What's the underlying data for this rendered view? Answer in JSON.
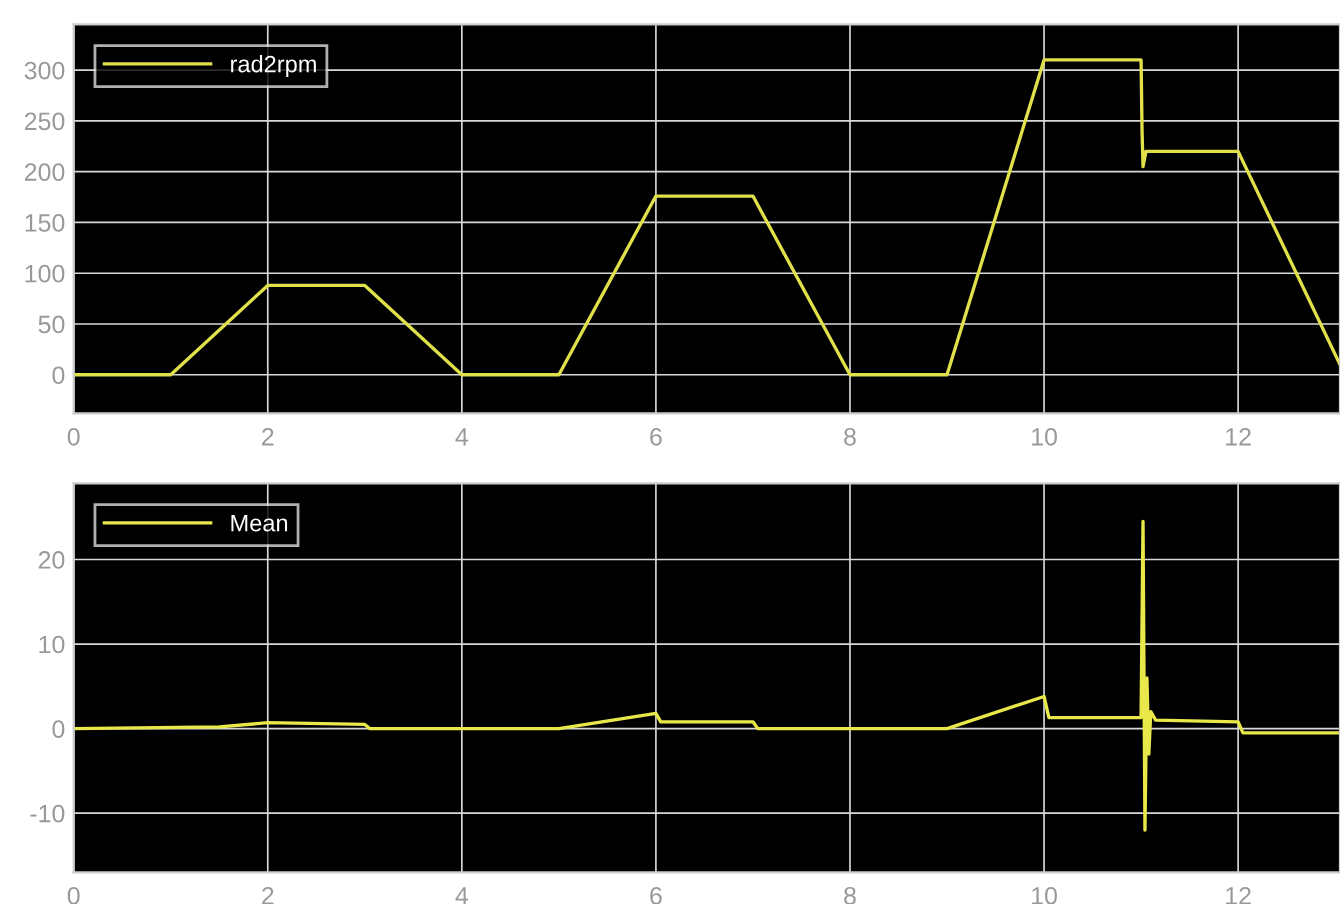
{
  "chart_data": [
    {
      "type": "line",
      "x": [
        0,
        1,
        2,
        3,
        4,
        5,
        6,
        7,
        8,
        9,
        10,
        11,
        11.01,
        11.02,
        11.05,
        12,
        13.05
      ],
      "series": [
        {
          "name": "rad2rpm",
          "color": "#e0e04a",
          "values": [
            0,
            0,
            88,
            88,
            0,
            0,
            176,
            176,
            0,
            0,
            310,
            310,
            240,
            205,
            220,
            220,
            10
          ]
        }
      ],
      "xlim": [
        0,
        13.05
      ],
      "xticks": [
        0,
        2,
        4,
        6,
        8,
        10,
        12
      ],
      "ylim": [
        -38,
        345
      ],
      "yticks": [
        0,
        50,
        100,
        150,
        200,
        250,
        300
      ],
      "grid": true,
      "legend": "top left",
      "line_style": "solid",
      "marker": "none"
    },
    {
      "type": "line",
      "x": [
        0,
        1.5,
        2,
        3,
        3.05,
        5,
        6,
        6.05,
        7,
        7.05,
        9,
        10,
        10.05,
        11,
        11.02,
        11.04,
        11.06,
        11.08,
        11.1,
        11.15,
        12,
        12.05,
        13.05
      ],
      "series": [
        {
          "name": "Mean",
          "color": "#e8e84a",
          "values": [
            0,
            0.2,
            0.7,
            0.5,
            0,
            0,
            1.8,
            0.8,
            0.8,
            0,
            0,
            3.8,
            1.3,
            1.3,
            24.5,
            -12,
            6,
            -3,
            2,
            1,
            0.8,
            -0.5,
            -0.5
          ]
        }
      ],
      "xlim": [
        0,
        13.05
      ],
      "xticks": [
        0,
        2,
        4,
        6,
        8,
        10,
        12
      ],
      "ylim": [
        -17,
        29
      ],
      "yticks": [
        -10,
        0,
        10,
        20
      ],
      "grid": true,
      "legend": "top left",
      "line_style": "solid",
      "marker": "none"
    }
  ]
}
